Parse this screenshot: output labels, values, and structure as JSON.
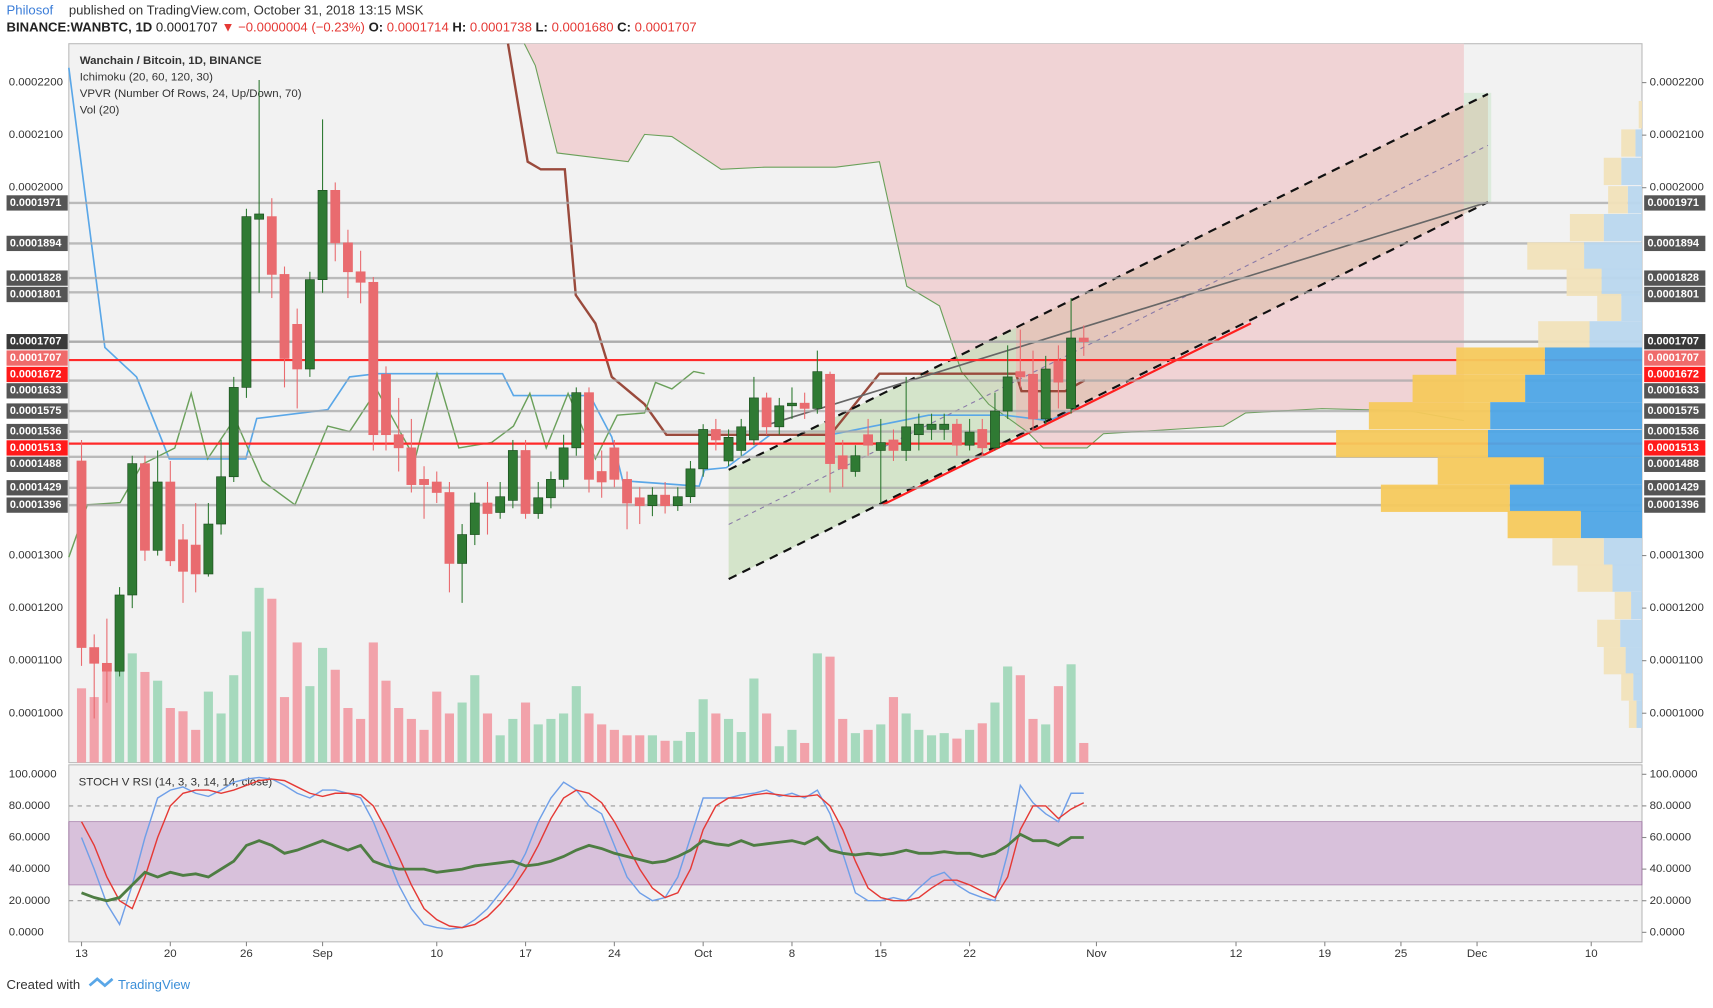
{
  "header": {
    "author": "Philosof",
    "published": "published on TradingView.com, October 31, 2018 13:15 MSK",
    "symbol": "BINANCE:WANBTC, 1D",
    "price": "0.0001707",
    "change": "▼ −0.0000004 (−0.23%)",
    "ohlc": [
      {
        "label": "O:",
        "value": "0.0001714"
      },
      {
        "label": "H:",
        "value": "0.0001738"
      },
      {
        "label": "L:",
        "value": "0.0001680"
      },
      {
        "label": "C:",
        "value": "0.0001707"
      }
    ]
  },
  "legend": [
    "Wanchain / Bitcoin, 1D, BINANCE",
    "Ichimoku (20, 60, 120, 30)",
    "VPVR (Number Of Rows, 24, Up/Down, 70)",
    "Vol (20)"
  ],
  "footer": {
    "created": "Created with",
    "brand": "TradingView"
  },
  "chart_data": {
    "type": "candlestick",
    "xlim": [
      -1,
      123
    ],
    "xticks": [
      {
        "value": 0,
        "label": "13"
      },
      {
        "value": 7,
        "label": "20"
      },
      {
        "value": 13,
        "label": "26"
      },
      {
        "value": 19,
        "label": "Sep"
      },
      {
        "value": 28,
        "label": "10"
      },
      {
        "value": 35,
        "label": "17"
      },
      {
        "value": 42,
        "label": "24"
      },
      {
        "value": 49,
        "label": "Oct"
      },
      {
        "value": 56,
        "label": "8"
      },
      {
        "value": 63,
        "label": "15"
      },
      {
        "value": 70,
        "label": "22"
      },
      {
        "value": 80,
        "label": "Nov"
      },
      {
        "value": 91,
        "label": "12"
      },
      {
        "value": 98,
        "label": "19"
      },
      {
        "value": 104,
        "label": "25"
      },
      {
        "value": 110,
        "label": "Dec"
      },
      {
        "value": 119,
        "label": "10"
      }
    ],
    "ylim": [
      9.06e-05,
      0.0002274
    ],
    "yticks": [
      {
        "value": 0.00022,
        "label": "0.0002200"
      },
      {
        "value": 0.00021,
        "label": "0.0002100"
      },
      {
        "value": 0.0002,
        "label": "0.0002000"
      },
      {
        "value": 0.00013,
        "label": "0.0001300"
      },
      {
        "value": 0.00012,
        "label": "0.0001200"
      },
      {
        "value": 0.00011,
        "label": "0.0001100"
      },
      {
        "value": 0.0001,
        "label": "0.0001000"
      }
    ],
    "levels": [
      {
        "value": 0.0001971,
        "color": "#555555"
      },
      {
        "value": 0.0001894,
        "color": "#555555"
      },
      {
        "value": 0.0001828,
        "color": "#555555"
      },
      {
        "value": 0.0001801,
        "color": "#555555"
      },
      {
        "value": 0.0001707,
        "color": "#3a3a3a"
      },
      {
        "value": 0.0001707,
        "color": "#ef6b6b"
      },
      {
        "value": 0.0001672,
        "color": "#ff1a1a"
      },
      {
        "value": 0.0001633,
        "color": "#555555"
      },
      {
        "value": 0.0001575,
        "color": "#555555"
      },
      {
        "value": 0.0001536,
        "color": "#555555"
      },
      {
        "value": 0.0001513,
        "color": "#ff1a1a"
      },
      {
        "value": 0.0001488,
        "color": "#555555"
      },
      {
        "value": 0.0001429,
        "color": "#555555"
      },
      {
        "value": 0.0001396,
        "color": "#555555"
      }
    ],
    "up_color": "#2f7a33",
    "down_color": "#e96b6f",
    "vol_up_color": "#a6d9bd",
    "vol_down_color": "#f2a2aa",
    "open": [
      0.000148,
      0.0001125,
      0.0001095,
      0.000108,
      0.0001225,
      0.0001475,
      0.000131,
      0.000144,
      0.000133,
      0.000132,
      0.0001265,
      0.000136,
      0.000145,
      0.000162,
      0.000194,
      0.0001945,
      0.0001835,
      0.000174,
      0.0001655,
      0.0001825,
      0.0001995,
      0.0001895,
      0.000184,
      0.000182,
      0.0001645,
      0.000153,
      0.0001505,
      0.0001445,
      0.000144,
      0.000142,
      0.0001285,
      0.000134,
      0.00014,
      0.0001382,
      0.0001405,
      0.00015,
      0.000138,
      0.000141,
      0.0001445,
      0.0001505,
      0.000161,
      0.000146,
      0.0001505,
      0.0001445,
      0.000141,
      0.0001395,
      0.0001415,
      0.0001395,
      0.0001412,
      0.0001465,
      0.000154,
      0.000148,
      0.00015,
      0.000152,
      0.00016,
      0.0001545,
      0.0001585,
      0.000159,
      0.000158,
      0.0001645,
      0.000149,
      0.000146,
      0.000153,
      0.00015,
      0.000152,
      0.00015,
      0.000153,
      0.000154,
      0.000154,
      0.000155,
      0.000151,
      0.000154,
      0.0001505,
      0.0001575,
      0.000165,
      0.0001645,
      0.000156,
      0.000167,
      0.000158,
      0.0001714
    ],
    "high": [
      0.000152,
      0.000115,
      0.000118,
      0.000124,
      0.000149,
      0.000149,
      0.00015,
      0.000148,
      0.000136,
      0.00014,
      0.00014,
      0.000152,
      0.000164,
      0.000196,
      0.0002205,
      0.000198,
      0.000185,
      0.000177,
      0.000184,
      0.000213,
      0.000201,
      0.000192,
      0.000188,
      0.000183,
      0.000166,
      0.00016,
      0.000156,
      0.000147,
      0.000146,
      0.000144,
      0.000136,
      0.000142,
      0.000144,
      0.000144,
      0.000152,
      0.000152,
      0.000144,
      0.000146,
      0.000153,
      0.000162,
      0.000162,
      0.00015,
      0.000152,
      0.000146,
      0.000143,
      0.000143,
      0.000144,
      0.000143,
      0.000148,
      0.000155,
      0.000156,
      0.000154,
      0.000156,
      0.000164,
      0.000161,
      0.00016,
      0.000162,
      0.000161,
      0.000169,
      0.000165,
      0.000152,
      0.000151,
      0.000156,
      0.000156,
      0.000154,
      0.000164,
      0.000157,
      0.000157,
      0.000157,
      0.000156,
      0.000156,
      0.000156,
      0.000161,
      0.00017,
      0.000173,
      0.000169,
      0.000168,
      0.00017,
      0.000179,
      0.0001738
    ],
    "low": [
      0.000109,
      9.9e-05,
      0.000102,
      0.000107,
      0.00012,
      0.000129,
      0.00013,
      0.000128,
      0.000121,
      0.000123,
      0.000126,
      0.000134,
      0.000144,
      0.00016,
      0.00018,
      0.000179,
      0.000162,
      0.000158,
      0.000164,
      0.00018,
      0.000186,
      0.000179,
      0.000178,
      0.00015,
      0.00015,
      0.000146,
      0.000142,
      0.000137,
      0.00014,
      0.000123,
      0.000121,
      0.000132,
      0.000134,
      0.000137,
      0.000139,
      0.000137,
      0.000137,
      0.000139,
      0.000143,
      0.000149,
      0.000142,
      0.000141,
      0.000143,
      0.000135,
      0.000136,
      0.0001375,
      0.000138,
      0.0001385,
      0.00014,
      0.000145,
      0.00015,
      0.000147,
      0.000149,
      0.000151,
      0.000153,
      0.000153,
      0.000156,
      0.000156,
      0.000157,
      0.000142,
      0.000143,
      0.000145,
      0.000149,
      0.00014,
      0.000148,
      0.000148,
      0.00015,
      0.000152,
      0.000152,
      0.000149,
      0.00015,
      0.000149,
      0.00015,
      0.000156,
      0.000162,
      0.000154,
      0.000155,
      0.000158,
      0.000157,
      0.000168
    ],
    "close": [
      0.0001125,
      0.0001095,
      0.000108,
      0.0001225,
      0.0001475,
      0.000131,
      0.000144,
      0.000129,
      0.000127,
      0.0001265,
      0.000136,
      0.000145,
      0.000162,
      0.0001945,
      0.000195,
      0.0001835,
      0.0001675,
      0.0001655,
      0.0001825,
      0.0001995,
      0.0001895,
      0.000184,
      0.000182,
      0.000153,
      0.000153,
      0.0001505,
      0.0001435,
      0.0001435,
      0.000142,
      0.0001285,
      0.000134,
      0.00014,
      0.000138,
      0.0001412,
      0.00015,
      0.000138,
      0.000141,
      0.0001445,
      0.0001505,
      0.000161,
      0.0001445,
      0.000144,
      0.0001445,
      0.00014,
      0.0001395,
      0.0001415,
      0.0001395,
      0.0001412,
      0.0001465,
      0.000154,
      0.000152,
      0.0001525,
      0.0001545,
      0.00016,
      0.0001545,
      0.0001585,
      0.000159,
      0.000158,
      0.000165,
      0.0001475,
      0.0001465,
      0.000149,
      0.000151,
      0.0001515,
      0.00015,
      0.0001545,
      0.000155,
      0.000155,
      0.000155,
      0.000151,
      0.0001535,
      0.0001505,
      0.0001575,
      0.000164,
      0.000164,
      0.000156,
      0.0001655,
      0.000163,
      0.0001714,
      0.0001707
    ],
    "volume": [
      68,
      60,
      90,
      107,
      100,
      83,
      75,
      50,
      47,
      30,
      65,
      45,
      80,
      120,
      160,
      150,
      60,
      110,
      70,
      105,
      85,
      50,
      40,
      110,
      75,
      50,
      40,
      30,
      65,
      45,
      55,
      80,
      45,
      25,
      40,
      55,
      35,
      40,
      45,
      70,
      45,
      35,
      30,
      25,
      25,
      25,
      20,
      20,
      28,
      58,
      45,
      40,
      28,
      77,
      45,
      15,
      30,
      18,
      100,
      97,
      40,
      27,
      30,
      35,
      60,
      45,
      30,
      25,
      27,
      22,
      30,
      36,
      55,
      88,
      80,
      40,
      35,
      70,
      90,
      18
    ],
    "vpvr": {
      "up_color": "#b9d7ee",
      "down_color": "#f1e2b9",
      "va_up_color": "#4ea5e6",
      "va_down_color": "#f6c95c",
      "prices": [
        0.0002139,
        0.0002085,
        0.0002031,
        0.0001977,
        0.0001924,
        0.000187,
        0.000182,
        0.0001772,
        0.000172,
        0.000167,
        0.0001618,
        0.0001566,
        0.0001513,
        0.0001461,
        0.0001409,
        0.0001359,
        0.0001307,
        0.0001257,
        0.0001205,
        0.0001152,
        0.00011,
        0.000105,
        9.98e-05
      ],
      "up": [
        0,
        6,
        19,
        13,
        35,
        53,
        37,
        19,
        48,
        89,
        107,
        139,
        141,
        90,
        121,
        56,
        35,
        27,
        10,
        20,
        15,
        8,
        5
      ],
      "down": [
        3,
        13,
        16,
        18,
        31,
        52,
        32,
        22,
        47,
        81,
        103,
        111,
        139,
        97,
        118,
        67,
        47,
        32,
        15,
        21,
        20,
        11,
        7
      ],
      "in_value_area": [
        false,
        false,
        false,
        false,
        false,
        false,
        false,
        false,
        false,
        true,
        true,
        true,
        true,
        true,
        true,
        true,
        false,
        false,
        false,
        false,
        false,
        false,
        false
      ]
    },
    "stoch": {
      "title": "STOCH V RSI (14, 3, 3, 14, 14, close)",
      "ylim": [
        -6,
        106
      ],
      "yticks": [
        {
          "value": 100,
          "label": "100.0000"
        },
        {
          "value": 80,
          "label": "80.0000"
        },
        {
          "value": 60,
          "label": "60.0000"
        },
        {
          "value": 40,
          "label": "40.0000"
        },
        {
          "value": 20,
          "label": "20.0000"
        },
        {
          "value": 0,
          "label": "0.0000"
        }
      ],
      "band": [
        30,
        70
      ],
      "dashed": [
        80,
        20
      ],
      "series": [
        {
          "color": "#6f9fe8",
          "width": 1.3,
          "values": [
            60,
            40,
            18,
            5,
            30,
            60,
            85,
            90,
            92,
            88,
            86,
            90,
            95,
            97,
            98,
            97,
            93,
            88,
            85,
            90,
            90,
            88,
            85,
            70,
            50,
            30,
            15,
            5,
            3,
            2,
            3,
            8,
            15,
            25,
            35,
            50,
            70,
            85,
            95,
            90,
            80,
            75,
            55,
            35,
            25,
            20,
            22,
            35,
            60,
            85,
            85,
            85,
            87,
            88,
            90,
            86,
            88,
            85,
            90,
            75,
            50,
            25,
            20,
            20,
            22,
            20,
            28,
            35,
            38,
            30,
            25,
            22,
            20,
            50,
            93,
            82,
            75,
            70,
            88,
            88
          ]
        },
        {
          "color": "#e53935",
          "width": 1.3,
          "values": [
            70,
            55,
            35,
            20,
            15,
            35,
            60,
            80,
            88,
            90,
            90,
            88,
            90,
            93,
            96,
            97,
            96,
            92,
            88,
            86,
            88,
            88,
            87,
            80,
            65,
            48,
            30,
            15,
            8,
            4,
            3,
            5,
            10,
            18,
            28,
            40,
            55,
            72,
            85,
            90,
            88,
            82,
            70,
            55,
            40,
            28,
            22,
            25,
            40,
            65,
            80,
            85,
            85,
            87,
            88,
            87,
            86,
            86,
            87,
            80,
            65,
            45,
            28,
            22,
            20,
            20,
            22,
            28,
            33,
            33,
            30,
            26,
            22,
            35,
            65,
            80,
            80,
            72,
            78,
            82
          ]
        },
        {
          "color": "#4e7d43",
          "width": 2.6,
          "values": [
            25,
            22,
            20,
            22,
            30,
            38,
            35,
            38,
            36,
            37,
            35,
            40,
            45,
            55,
            58,
            55,
            50,
            52,
            55,
            58,
            55,
            52,
            55,
            45,
            42,
            40,
            40,
            40,
            38,
            39,
            40,
            42,
            43,
            44,
            45,
            42,
            43,
            45,
            48,
            52,
            55,
            53,
            50,
            48,
            46,
            44,
            45,
            48,
            52,
            58,
            56,
            55,
            58,
            55,
            56,
            57,
            58,
            56,
            60,
            52,
            50,
            49,
            50,
            49,
            50,
            52,
            50,
            50,
            51,
            50,
            50,
            48,
            50,
            55,
            62,
            58,
            58,
            55,
            60,
            60
          ]
        }
      ]
    }
  }
}
